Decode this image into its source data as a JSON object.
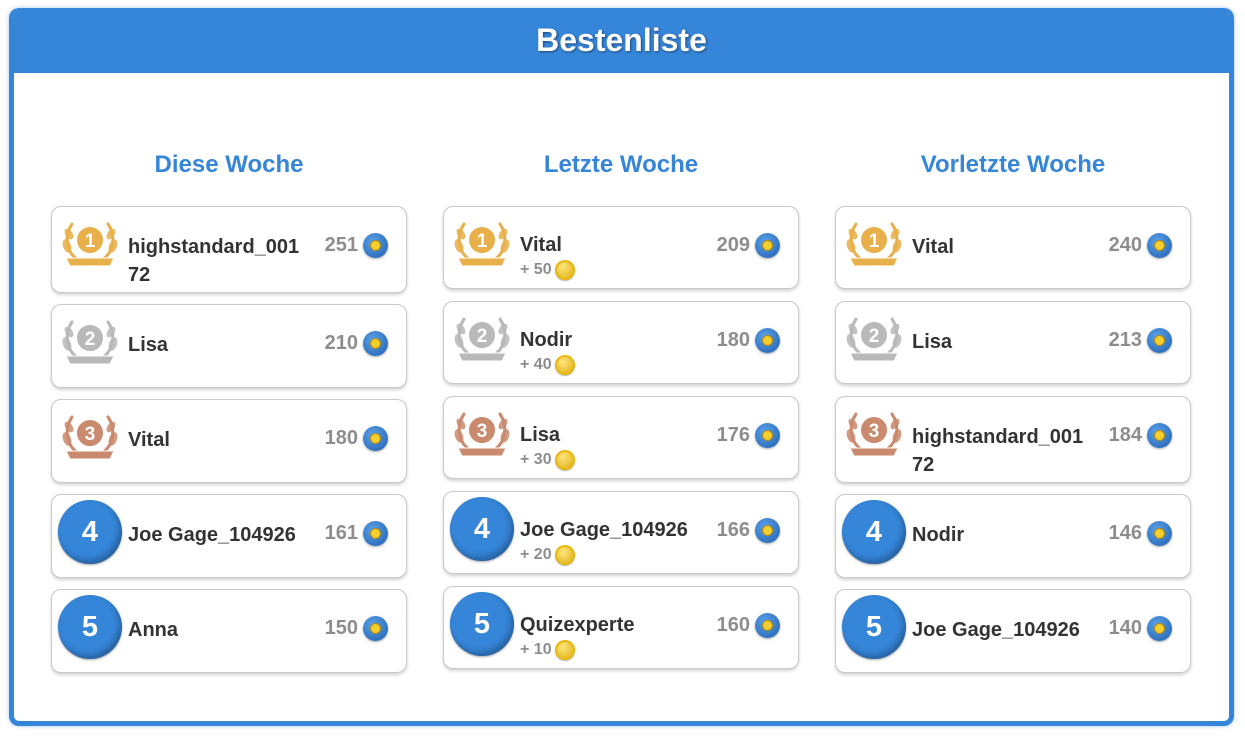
{
  "header": {
    "title": "Bestenliste"
  },
  "columns": [
    {
      "title": "Diese Woche",
      "entries": [
        {
          "rank": "1",
          "name": "highstandard_00172",
          "score": "251",
          "bonus": ""
        },
        {
          "rank": "2",
          "name": "Lisa",
          "score": "210",
          "bonus": ""
        },
        {
          "rank": "3",
          "name": "Vital",
          "score": "180",
          "bonus": ""
        },
        {
          "rank": "4",
          "name": "Joe Gage_104926",
          "score": "161",
          "bonus": ""
        },
        {
          "rank": "5",
          "name": "Anna",
          "score": "150",
          "bonus": ""
        }
      ]
    },
    {
      "title": "Letzte Woche",
      "entries": [
        {
          "rank": "1",
          "name": "Vital",
          "score": "209",
          "bonus": "+ 50"
        },
        {
          "rank": "2",
          "name": "Nodir",
          "score": "180",
          "bonus": "+ 40"
        },
        {
          "rank": "3",
          "name": "Lisa",
          "score": "176",
          "bonus": "+ 30"
        },
        {
          "rank": "4",
          "name": "Joe Gage_104926",
          "score": "166",
          "bonus": "+ 20"
        },
        {
          "rank": "5",
          "name": "Quizexperte",
          "score": "160",
          "bonus": "+ 10"
        }
      ]
    },
    {
      "title": "Vorletzte Woche",
      "entries": [
        {
          "rank": "1",
          "name": "Vital",
          "score": "240",
          "bonus": ""
        },
        {
          "rank": "2",
          "name": "Lisa",
          "score": "213",
          "bonus": ""
        },
        {
          "rank": "3",
          "name": "highstandard_00172",
          "score": "184",
          "bonus": ""
        },
        {
          "rank": "4",
          "name": "Nodir",
          "score": "146",
          "bonus": ""
        },
        {
          "rank": "5",
          "name": "Joe Gage_104926",
          "score": "140",
          "bonus": ""
        }
      ]
    }
  ],
  "icons": {
    "medal": "laurel-medal-icon",
    "score": "quiz-points-icon",
    "bonus": "gold-coin-icon"
  },
  "colors": {
    "accent": "#3585d8",
    "gold": "#e8b04a",
    "silver": "#b9b9b9",
    "bronze": "#c98a6e"
  }
}
